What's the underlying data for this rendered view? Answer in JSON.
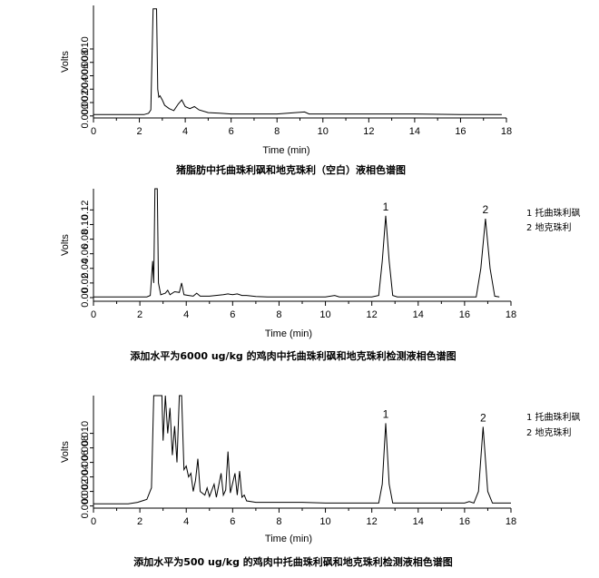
{
  "chart_data": [
    {
      "type": "line",
      "caption": "猪脂肪中托曲珠利砜和地克珠利（空白）液相色谱图",
      "xlabel": "Time (min)",
      "ylabel": "Volts",
      "xlim": [
        0,
        18
      ],
      "x_ticks": [
        "0",
        "2",
        "4",
        "6",
        "8",
        "10",
        "12",
        "14",
        "16",
        "18"
      ],
      "ylim": [
        -0.0003,
        0.0165
      ],
      "y_ticks": [
        {
          "value": 0.0,
          "label": "0.000"
        },
        {
          "value": 0.002,
          "label": "0.002"
        },
        {
          "value": 0.004,
          "label": "0.004"
        },
        {
          "value": 0.006,
          "label": "0.006"
        },
        {
          "value": 0.008,
          "label": "0.008"
        },
        {
          "value": 0.01,
          "label": "0.010"
        }
      ],
      "peak_labels": [],
      "legend": [],
      "series": [
        {
          "points": [
            [
              0.0,
              0.0002
            ],
            [
              2.2,
              0.0002
            ],
            [
              2.4,
              0.0004
            ],
            [
              2.5,
              0.0009
            ],
            [
              2.6,
              0.016
            ],
            [
              2.7,
              0.016
            ],
            [
              2.75,
              0.016
            ],
            [
              2.8,
              0.004
            ],
            [
              2.85,
              0.0028
            ],
            [
              2.9,
              0.003
            ],
            [
              3.0,
              0.0024
            ],
            [
              3.1,
              0.0016
            ],
            [
              3.3,
              0.0011
            ],
            [
              3.5,
              0.0008
            ],
            [
              3.7,
              0.0018
            ],
            [
              3.85,
              0.0024
            ],
            [
              4.0,
              0.0014
            ],
            [
              4.2,
              0.0011
            ],
            [
              4.4,
              0.0014
            ],
            [
              4.6,
              0.0009
            ],
            [
              5.0,
              0.0005
            ],
            [
              5.5,
              0.0004
            ],
            [
              6.0,
              0.0003
            ],
            [
              7.0,
              0.0003
            ],
            [
              8.0,
              0.0003
            ],
            [
              9.2,
              0.0006
            ],
            [
              9.4,
              0.0003
            ],
            [
              10.0,
              0.0003
            ],
            [
              12.0,
              0.0003
            ],
            [
              14.0,
              0.0003
            ],
            [
              16.0,
              0.0002
            ],
            [
              17.8,
              0.0002
            ]
          ]
        }
      ]
    },
    {
      "type": "line",
      "caption": "添加水平为6000 ug/kg 的鸡肉中托曲珠利砜和地克珠利检测液相色谱图",
      "xlabel": "Time (min)",
      "ylabel": "Volts",
      "xlim": [
        0,
        18
      ],
      "x_ticks": [
        "0",
        "2",
        "4",
        "6",
        "8",
        "10",
        "12",
        "14",
        "16",
        "18"
      ],
      "ylim": [
        -0.005,
        0.149
      ],
      "y_ticks": [
        {
          "value": 0.0,
          "label": "0.00"
        },
        {
          "value": 0.02,
          "label": "0.02"
        },
        {
          "value": 0.04,
          "label": "0.04"
        },
        {
          "value": 0.06,
          "label": "0.06"
        },
        {
          "value": 0.08,
          "label": "0.08"
        },
        {
          "value": 0.1,
          "label": "0.10"
        },
        {
          "value": 0.12,
          "label": "0.12"
        }
      ],
      "peak_labels": [
        {
          "label": "1",
          "x": 12.6,
          "y": 0.112
        },
        {
          "label": "2",
          "x": 16.9,
          "y": 0.108
        }
      ],
      "legend": [
        "1  托曲珠利砜",
        "2  地克珠利"
      ],
      "series": [
        {
          "points": [
            [
              0.0,
              0.001
            ],
            [
              2.3,
              0.001
            ],
            [
              2.45,
              0.003
            ],
            [
              2.55,
              0.05
            ],
            [
              2.6,
              0.02
            ],
            [
              2.65,
              0.149
            ],
            [
              2.75,
              0.149
            ],
            [
              2.8,
              0.02
            ],
            [
              2.9,
              0.004
            ],
            [
              3.1,
              0.006
            ],
            [
              3.2,
              0.01
            ],
            [
              3.3,
              0.004
            ],
            [
              3.5,
              0.008
            ],
            [
              3.7,
              0.007
            ],
            [
              3.8,
              0.02
            ],
            [
              3.9,
              0.004
            ],
            [
              4.1,
              0.003
            ],
            [
              4.3,
              0.002
            ],
            [
              4.45,
              0.006
            ],
            [
              4.6,
              0.002
            ],
            [
              5.0,
              0.002
            ],
            [
              5.6,
              0.004
            ],
            [
              5.8,
              0.005
            ],
            [
              6.0,
              0.004
            ],
            [
              6.2,
              0.005
            ],
            [
              6.4,
              0.003
            ],
            [
              6.6,
              0.003
            ],
            [
              7.0,
              0.0015
            ],
            [
              7.5,
              0.001
            ],
            [
              10.0,
              0.001
            ],
            [
              10.4,
              0.003
            ],
            [
              10.6,
              0.001
            ],
            [
              12.0,
              0.001
            ],
            [
              12.3,
              0.003
            ],
            [
              12.45,
              0.05
            ],
            [
              12.6,
              0.112
            ],
            [
              12.75,
              0.05
            ],
            [
              12.9,
              0.003
            ],
            [
              13.1,
              0.001
            ],
            [
              16.5,
              0.001
            ],
            [
              16.7,
              0.04
            ],
            [
              16.9,
              0.108
            ],
            [
              17.1,
              0.04
            ],
            [
              17.3,
              0.002
            ],
            [
              17.5,
              0.001
            ]
          ]
        }
      ]
    },
    {
      "type": "line",
      "caption": "添加水平为500 ug/kg 的鸡肉中托曲珠利砜和地克珠利检测液相色谱图",
      "xlabel": "Time (min)",
      "ylabel": "Volts",
      "xlim": [
        0,
        18
      ],
      "x_ticks": [
        "0",
        "2",
        "4",
        "6",
        "8",
        "10",
        "12",
        "14",
        "16",
        "18"
      ],
      "ylim": [
        -0.0003,
        0.0152
      ],
      "y_ticks": [
        {
          "value": 0.0,
          "label": "0.000"
        },
        {
          "value": 0.002,
          "label": "0.002"
        },
        {
          "value": 0.004,
          "label": "0.004"
        },
        {
          "value": 0.006,
          "label": "0.006"
        },
        {
          "value": 0.008,
          "label": "0.008"
        },
        {
          "value": 0.01,
          "label": "0.010"
        }
      ],
      "peak_labels": [
        {
          "label": "1",
          "x": 12.6,
          "y": 0.0114
        },
        {
          "label": "2",
          "x": 16.8,
          "y": 0.0109
        }
      ],
      "legend": [
        "1  托曲珠利砜",
        "2  地克珠利"
      ],
      "series": [
        {
          "points": [
            [
              0.0,
              0.0003
            ],
            [
              1.5,
              0.0003
            ],
            [
              1.9,
              0.0005
            ],
            [
              2.1,
              0.0007
            ],
            [
              2.3,
              0.0009
            ],
            [
              2.5,
              0.0025
            ],
            [
              2.6,
              0.0152
            ],
            [
              2.95,
              0.0152
            ],
            [
              3.0,
              0.009
            ],
            [
              3.1,
              0.0152
            ],
            [
              3.2,
              0.01
            ],
            [
              3.3,
              0.0135
            ],
            [
              3.4,
              0.007
            ],
            [
              3.5,
              0.011
            ],
            [
              3.6,
              0.006
            ],
            [
              3.7,
              0.0152
            ],
            [
              3.8,
              0.0152
            ],
            [
              3.9,
              0.005
            ],
            [
              4.0,
              0.0055
            ],
            [
              4.1,
              0.004
            ],
            [
              4.2,
              0.0045
            ],
            [
              4.3,
              0.002
            ],
            [
              4.4,
              0.0035
            ],
            [
              4.5,
              0.0065
            ],
            [
              4.6,
              0.002
            ],
            [
              4.8,
              0.0015
            ],
            [
              4.9,
              0.0025
            ],
            [
              5.0,
              0.0013
            ],
            [
              5.2,
              0.003
            ],
            [
              5.3,
              0.0012
            ],
            [
              5.5,
              0.0045
            ],
            [
              5.6,
              0.0015
            ],
            [
              5.7,
              0.0022
            ],
            [
              5.8,
              0.0075
            ],
            [
              5.9,
              0.0018
            ],
            [
              6.1,
              0.0045
            ],
            [
              6.2,
              0.0015
            ],
            [
              6.3,
              0.0048
            ],
            [
              6.4,
              0.0012
            ],
            [
              6.5,
              0.0015
            ],
            [
              6.6,
              0.0007
            ],
            [
              7.0,
              0.0005
            ],
            [
              8.0,
              0.0005
            ],
            [
              9.0,
              0.0005
            ],
            [
              10.0,
              0.0004
            ],
            [
              12.3,
              0.0004
            ],
            [
              12.45,
              0.003
            ],
            [
              12.6,
              0.0114
            ],
            [
              12.75,
              0.003
            ],
            [
              12.9,
              0.0004
            ],
            [
              14.0,
              0.0004
            ],
            [
              16.0,
              0.0004
            ],
            [
              16.2,
              0.0006
            ],
            [
              16.4,
              0.0004
            ],
            [
              16.6,
              0.002
            ],
            [
              16.8,
              0.0109
            ],
            [
              17.0,
              0.002
            ],
            [
              17.2,
              0.0004
            ],
            [
              18.0,
              0.0004
            ]
          ]
        }
      ]
    }
  ]
}
